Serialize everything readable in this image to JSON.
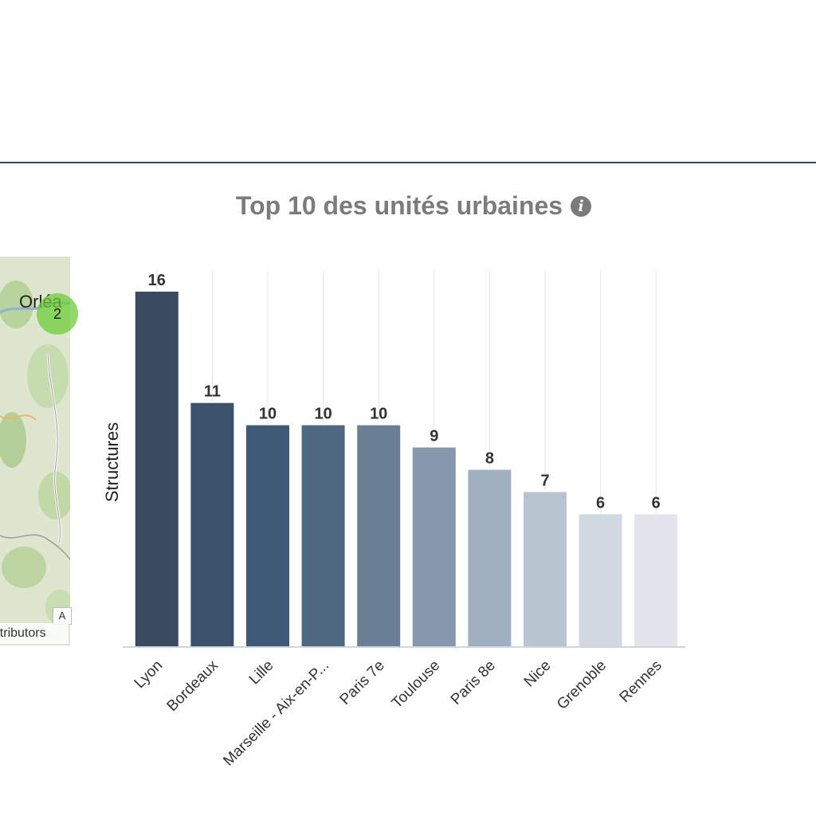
{
  "chart_title": "Top 10 des unités urbaines",
  "map": {
    "city_label": "Orléa",
    "cluster_count": "2",
    "attribution": "contributors",
    "control_label": "A"
  },
  "chart_data": {
    "type": "bar",
    "title": "Top 10 des unités urbaines",
    "xlabel": "",
    "ylabel": "Structures",
    "categories": [
      "Lyon",
      "Bordeaux",
      "Lille",
      "Marseille - Aix-en-P...",
      "Paris 7e",
      "Toulouse",
      "Paris 8e",
      "Nice",
      "Grenoble",
      "Rennes"
    ],
    "values": [
      16,
      11,
      10,
      10,
      10,
      9,
      8,
      7,
      6,
      6
    ],
    "ylim": [
      0,
      16
    ],
    "grid": "vertical",
    "data_labels": true,
    "colors": [
      "#3a4b61",
      "#3b516c",
      "#3e5a78",
      "#4e6882",
      "#6a7f96",
      "#8598ac",
      "#a1b0c0",
      "#b9c4d1",
      "#d1d8e1",
      "#e2e5ec"
    ]
  }
}
